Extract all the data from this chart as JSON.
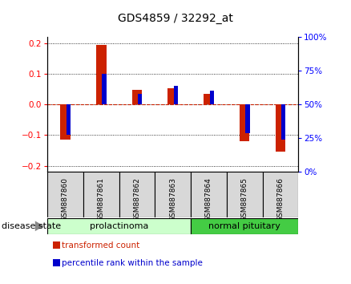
{
  "title": "GDS4859 / 32292_at",
  "samples": [
    "GSM887860",
    "GSM887861",
    "GSM887862",
    "GSM887863",
    "GSM887864",
    "GSM887865",
    "GSM887866"
  ],
  "transformed_count": [
    -0.115,
    0.195,
    0.047,
    0.052,
    0.035,
    -0.12,
    -0.155
  ],
  "percentile_rank_data": [
    -0.1,
    0.1,
    0.035,
    0.06,
    0.045,
    -0.095,
    -0.115
  ],
  "ylim": [
    -0.22,
    0.22
  ],
  "yticks_left": [
    -0.2,
    -0.1,
    0.0,
    0.1,
    0.2
  ],
  "yticks_right_pct": [
    0,
    25,
    50,
    75,
    100
  ],
  "bar_color_red": "#cc2200",
  "bar_color_blue": "#0000cc",
  "zero_line_color": "#cc2200",
  "disease_groups": [
    {
      "label": "prolactinoma",
      "start": 0,
      "end": 3,
      "color": "#ccffcc",
      "border": "#44aa44"
    },
    {
      "label": "normal pituitary",
      "start": 4,
      "end": 6,
      "color": "#44cc44",
      "border": "#44aa44"
    }
  ],
  "legend_items": [
    {
      "label": "transformed count",
      "color": "#cc2200"
    },
    {
      "label": "percentile rank within the sample",
      "color": "#0000cc"
    }
  ],
  "disease_state_label": "disease state",
  "title_fontsize": 10,
  "tick_fontsize": 7.5,
  "sample_fontsize": 6.5,
  "legend_fontsize": 7.5,
  "disease_fontsize": 8,
  "red_bar_width": 0.28,
  "blue_bar_width": 0.12
}
